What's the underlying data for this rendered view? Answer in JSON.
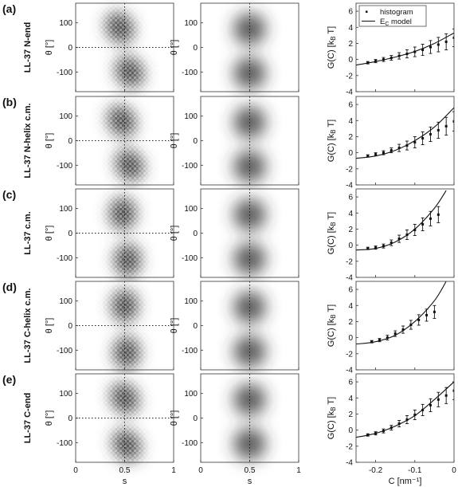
{
  "figure": {
    "rows": [
      {
        "letter": "(a)",
        "label": "LL-37 N-end"
      },
      {
        "letter": "(b)",
        "label": "LL-37 N-helix c.m."
      },
      {
        "letter": "(c)",
        "label": "LL-37 c.m."
      },
      {
        "letter": "(d)",
        "label": "LL-37 C-helix c.m."
      },
      {
        "letter": "(e)",
        "label": "LL-37 C-end"
      }
    ],
    "col_labels": {
      "heat_ylabel": "θ [°]",
      "heat_xlabel": "s",
      "g_ylabel": "G(C) [k_B T]",
      "g_xlabel": "C [nm⁻¹]"
    },
    "legend": {
      "histogram": "histogram",
      "model": "E_C model"
    }
  },
  "chart_data": [
    {
      "type": "heatmap",
      "panel": "histogram-density",
      "xlim": [
        0,
        1
      ],
      "ylim": [
        -180,
        180
      ],
      "xticks": [
        0,
        0.5,
        1
      ],
      "yticks": [
        -100,
        0,
        100
      ],
      "xlabel": "s",
      "ylabel": "θ [°]",
      "reference_lines": {
        "x": 0.5,
        "y": 0
      },
      "rows": [
        {
          "row": "LL-37 N-end",
          "clusters": [
            {
              "s": 0.45,
              "theta": 80,
              "tilt": -1
            },
            {
              "s": 0.55,
              "theta": -100,
              "tilt": -1
            }
          ]
        },
        {
          "row": "LL-37 N-helix c.m.",
          "clusters": [
            {
              "s": 0.47,
              "theta": 80,
              "tilt": -1
            },
            {
              "s": 0.55,
              "theta": -100,
              "tilt": -1
            }
          ]
        },
        {
          "row": "LL-37 c.m.",
          "clusters": [
            {
              "s": 0.48,
              "theta": 80,
              "tilt": 0
            },
            {
              "s": 0.53,
              "theta": -110,
              "tilt": 0
            }
          ]
        },
        {
          "row": "LL-37 C-helix c.m.",
          "clusters": [
            {
              "s": 0.5,
              "theta": 80,
              "tilt": 0
            },
            {
              "s": 0.52,
              "theta": -110,
              "tilt": 0
            }
          ]
        },
        {
          "row": "LL-37 C-end",
          "clusters": [
            {
              "s": 0.5,
              "theta": 80,
              "tilt": -1
            },
            {
              "s": 0.52,
              "theta": -110,
              "tilt": -1
            }
          ]
        }
      ]
    },
    {
      "type": "heatmap",
      "panel": "model-density",
      "xlim": [
        0,
        1
      ],
      "ylim": [
        -180,
        180
      ],
      "xticks": [
        0,
        0.5,
        1
      ],
      "yticks": [
        -100,
        0,
        100
      ],
      "xlabel": "s",
      "ylabel": "θ [°]",
      "reference_lines": {
        "x": 0.5
      },
      "peaks": [
        {
          "s": 0.5,
          "theta": 75
        },
        {
          "s": 0.5,
          "theta": -105
        }
      ]
    },
    {
      "type": "line",
      "panel": "free-energy",
      "xlim": [
        -0.25,
        0
      ],
      "ylim": [
        -4,
        7
      ],
      "xticks": [
        -0.2,
        -0.1,
        0
      ],
      "yticks": [
        -4,
        -2,
        0,
        2,
        4,
        6
      ],
      "xlabel": "C [nm⁻¹]",
      "ylabel": "G(C) [k_B T]",
      "legend_position": "top-left",
      "series": [
        {
          "name": "histogram",
          "row": "LL-37 N-end",
          "x": [
            -0.22,
            -0.2,
            -0.18,
            -0.16,
            -0.14,
            -0.12,
            -0.1,
            -0.08,
            -0.06,
            -0.04,
            -0.02,
            0
          ],
          "y": [
            -0.4,
            -0.2,
            0.0,
            0.2,
            0.45,
            0.7,
            0.95,
            1.2,
            1.55,
            1.85,
            2.2,
            2.7
          ],
          "err": [
            0.15,
            0.2,
            0.25,
            0.3,
            0.4,
            0.5,
            0.6,
            0.7,
            0.8,
            0.9,
            1.0,
            1.1
          ]
        },
        {
          "name": "histogram",
          "row": "LL-37 N-helix c.m.",
          "x": [
            -0.22,
            -0.2,
            -0.18,
            -0.16,
            -0.14,
            -0.12,
            -0.1,
            -0.08,
            -0.06,
            -0.04,
            -0.02,
            0
          ],
          "y": [
            -0.4,
            -0.2,
            0.0,
            0.3,
            0.6,
            0.9,
            1.3,
            1.8,
            2.3,
            2.8,
            3.3,
            3.9
          ],
          "err": [
            0.15,
            0.2,
            0.25,
            0.3,
            0.45,
            0.55,
            0.7,
            0.8,
            0.9,
            1.0,
            1.1,
            1.2
          ]
        },
        {
          "name": "histogram",
          "row": "LL-37 c.m.",
          "x": [
            -0.22,
            -0.2,
            -0.18,
            -0.16,
            -0.14,
            -0.12,
            -0.1,
            -0.08,
            -0.06,
            -0.04
          ],
          "y": [
            -0.4,
            -0.3,
            -0.1,
            0.3,
            0.8,
            1.3,
            1.9,
            2.6,
            3.3,
            3.8
          ],
          "err": [
            0.15,
            0.2,
            0.25,
            0.35,
            0.45,
            0.6,
            0.7,
            0.8,
            0.9,
            1.0
          ]
        },
        {
          "name": "histogram",
          "row": "LL-37 C-helix c.m.",
          "x": [
            -0.21,
            -0.19,
            -0.17,
            -0.15,
            -0.13,
            -0.11,
            -0.09,
            -0.07,
            -0.05
          ],
          "y": [
            -0.5,
            -0.3,
            0.0,
            0.5,
            1.0,
            1.6,
            2.2,
            2.8,
            3.2
          ],
          "err": [
            0.15,
            0.2,
            0.3,
            0.35,
            0.45,
            0.55,
            0.65,
            0.75,
            0.8
          ]
        },
        {
          "name": "histogram",
          "row": "LL-37 C-end",
          "x": [
            -0.22,
            -0.2,
            -0.18,
            -0.16,
            -0.14,
            -0.12,
            -0.1,
            -0.08,
            -0.06,
            -0.04,
            -0.02,
            0
          ],
          "y": [
            -0.6,
            -0.4,
            -0.1,
            0.3,
            0.8,
            1.3,
            1.9,
            2.5,
            3.1,
            3.8,
            4.3,
            4.9
          ],
          "err": [
            0.15,
            0.2,
            0.25,
            0.3,
            0.4,
            0.5,
            0.6,
            0.7,
            0.8,
            0.9,
            1.0,
            1.1
          ]
        },
        {
          "name": "E_C model",
          "row": "LL-37 N-end",
          "x": [
            -0.25,
            -0.2,
            -0.15,
            -0.1,
            -0.05,
            0
          ],
          "y": [
            -0.7,
            -0.25,
            0.3,
            1.0,
            2.0,
            3.3
          ]
        },
        {
          "name": "E_C model",
          "row": "LL-37 N-helix c.m.",
          "x": [
            -0.25,
            -0.2,
            -0.15,
            -0.1,
            -0.05,
            0
          ],
          "y": [
            -0.7,
            -0.4,
            0.3,
            1.5,
            3.2,
            5.6
          ]
        },
        {
          "name": "E_C model",
          "row": "LL-37 c.m.",
          "x": [
            -0.25,
            -0.2,
            -0.15,
            -0.1,
            -0.05,
            -0.02
          ],
          "y": [
            -0.6,
            -0.4,
            0.4,
            2.0,
            4.6,
            6.8
          ]
        },
        {
          "name": "E_C model",
          "row": "LL-37 C-helix c.m.",
          "x": [
            -0.25,
            -0.2,
            -0.15,
            -0.1,
            -0.05,
            -0.02
          ],
          "y": [
            -0.8,
            -0.5,
            0.3,
            2.0,
            4.6,
            7.0
          ]
        },
        {
          "name": "E_C model",
          "row": "LL-37 C-end",
          "x": [
            -0.25,
            -0.2,
            -0.15,
            -0.1,
            -0.05,
            0
          ],
          "y": [
            -0.9,
            -0.4,
            0.5,
            1.8,
            3.8,
            6.0
          ]
        }
      ]
    }
  ]
}
